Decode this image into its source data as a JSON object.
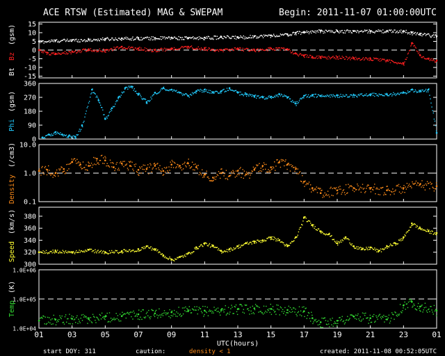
{
  "header": {
    "title": "ACE RTSW (Estimated) MAG & SWEPAM",
    "begin": "Begin: 2011-11-07 01:00:00UTC"
  },
  "footer": {
    "start_doy": "start DOY: 311",
    "caution": "caution:",
    "density_note": "density < 1",
    "created": "created: 2011-11-08 00:52:05UTC"
  },
  "colors": {
    "background": "#000000",
    "bt": "#ffffff",
    "bz": "#ff2020",
    "phi": "#22ccff",
    "density": "#ff8c1a",
    "speed": "#ffff33",
    "temp": "#33dd33",
    "axis": "#ffffff"
  },
  "chart_data": {
    "type": "scatter",
    "xlabel": "UTC(hours)",
    "x_ticks": [
      "01",
      "03",
      "05",
      "07",
      "09",
      "11",
      "13",
      "15",
      "17",
      "19",
      "21",
      "23",
      "01"
    ],
    "x_range_hours": [
      1,
      25
    ],
    "panels": [
      {
        "id": "mag",
        "ylabel_parts": [
          "Bt",
          "Bz",
          "(gsm)"
        ],
        "ylim": [
          -16,
          16
        ],
        "ticks": [
          15,
          10,
          5,
          0,
          -5,
          -10,
          -15
        ],
        "reference_line": 0,
        "series": [
          {
            "name": "Bt",
            "color": "bt",
            "x": [
              1,
              2,
              3,
              4,
              5,
              6,
              7,
              8,
              9,
              10,
              11,
              12,
              13,
              14,
              15,
              16,
              16.5,
              17,
              18,
              19,
              20,
              21,
              22,
              23,
              23.5,
              24,
              25
            ],
            "y": [
              5,
              5.5,
              5.8,
              6,
              6.5,
              6.8,
              7,
              7,
              7.2,
              7,
              7.2,
              7.5,
              7.5,
              8,
              8.5,
              9,
              10,
              10.5,
              11,
              11,
              11,
              11,
              11,
              11,
              10,
              9.5,
              8
            ]
          },
          {
            "name": "Bz",
            "color": "bz",
            "x": [
              1,
              1.5,
              2,
              3,
              4,
              5,
              6,
              7,
              8,
              9,
              10,
              11,
              12,
              13,
              14,
              15,
              16,
              16.5,
              17,
              17.5,
              18,
              19,
              20,
              21,
              22,
              23,
              23.5,
              24,
              24.5,
              25
            ],
            "y": [
              0,
              -1.5,
              -2,
              -1,
              0.5,
              0,
              2,
              1,
              0,
              1,
              2,
              1,
              0,
              1,
              0,
              1,
              0.5,
              -2,
              -3,
              -4,
              -4,
              -4,
              -4.5,
              -5,
              -6,
              -7.5,
              4,
              -3,
              -5,
              -6
            ]
          }
        ]
      },
      {
        "id": "phi",
        "ylabel_parts": [
          "Phi",
          "(gsm)"
        ],
        "ylim": [
          0,
          360
        ],
        "ticks": [
          360,
          270,
          180,
          90,
          0
        ],
        "series": [
          {
            "name": "Phi",
            "color": "phi",
            "x": [
              1.2,
              1.6,
              2,
              2.4,
              2.8,
              3.2,
              3.6,
              4.2,
              4.6,
              5,
              5.4,
              5.8,
              6.2,
              6.6,
              7,
              7.5,
              8,
              8.5,
              9,
              9.5,
              10,
              10.5,
              11,
              11.5,
              12,
              12.5,
              13,
              13.5,
              14,
              14.5,
              15,
              15.5,
              16,
              16.5,
              17,
              17.5,
              18,
              19,
              20,
              21,
              22,
              23,
              23.5,
              24,
              24.5,
              25
            ],
            "y": [
              10,
              30,
              45,
              30,
              20,
              15,
              90,
              320,
              250,
              130,
              200,
              270,
              330,
              340,
              290,
              240,
              300,
              330,
              320,
              300,
              280,
              310,
              320,
              300,
              310,
              330,
              300,
              290,
              280,
              270,
              275,
              290,
              270,
              230,
              280,
              285,
              280,
              282,
              285,
              290,
              290,
              300,
              320,
              310,
              320,
              40
            ]
          }
        ]
      },
      {
        "id": "density",
        "ylabel_parts": [
          "Density",
          "(/cm3)"
        ],
        "log": true,
        "ylim": [
          0.1,
          10.0
        ],
        "ticks": [
          10.0,
          1.0,
          0.1
        ],
        "tick_labels": [
          "10.0",
          "1.0",
          "0.1"
        ],
        "reference_line": 1.0,
        "series": [
          {
            "name": "Density",
            "color": "density",
            "x": [
              1,
              1.5,
              2,
              2.5,
              3,
              3.5,
              4,
              4.5,
              5,
              5.5,
              6,
              6.5,
              7,
              7.5,
              8,
              8.5,
              9,
              9.5,
              10,
              10.5,
              11,
              11.5,
              12,
              12.5,
              13,
              13.5,
              14,
              14.5,
              15,
              15.5,
              16,
              16.5,
              17,
              17.5,
              18,
              19,
              20,
              21,
              22,
              23,
              24,
              25
            ],
            "y": [
              1.2,
              1.3,
              1.0,
              1.4,
              2.5,
              2.0,
              1.8,
              3.2,
              2.8,
              1.6,
              2.2,
              1.8,
              1.3,
              1.4,
              1.8,
              1.2,
              2.0,
              1.8,
              2.2,
              1.6,
              0.9,
              0.7,
              1.0,
              0.8,
              1.2,
              0.9,
              1.3,
              1.8,
              1.6,
              2.4,
              2.0,
              1.4,
              0.5,
              0.3,
              0.2,
              0.25,
              0.3,
              0.3,
              0.25,
              0.3,
              0.4,
              0.35
            ]
          }
        ]
      },
      {
        "id": "speed",
        "ylabel_parts": [
          "Speed",
          "(km/s)"
        ],
        "ylim": [
          300,
          395
        ],
        "ticks": [
          380,
          360,
          340,
          320,
          300
        ],
        "series": [
          {
            "name": "Speed",
            "color": "speed",
            "x": [
              1,
              2,
              3,
              4,
              5,
              6,
              7,
              7.5,
              8,
              8.5,
              9,
              9.5,
              10,
              10.5,
              11,
              11.5,
              12,
              12.5,
              13,
              13.5,
              14,
              14.5,
              15,
              15.5,
              16,
              16.5,
              17,
              17.5,
              18,
              18.5,
              19,
              19.5,
              20,
              20.5,
              21,
              21.5,
              22,
              22.5,
              23,
              23.5,
              24,
              24.5,
              25
            ],
            "y": [
              320,
              322,
              320,
              324,
              320,
              322,
              325,
              330,
              325,
              315,
              308,
              312,
              318,
              328,
              335,
              330,
              322,
              325,
              330,
              335,
              338,
              340,
              345,
              340,
              330,
              345,
              378,
              365,
              355,
              350,
              335,
              345,
              330,
              325,
              328,
              322,
              330,
              335,
              345,
              368,
              360,
              355,
              352
            ]
          }
        ]
      },
      {
        "id": "temp",
        "ylabel_parts": [
          "Temp",
          "(K)"
        ],
        "log": true,
        "ylim": [
          10000,
          1000000
        ],
        "ticks": [
          1000000,
          100000,
          10000
        ],
        "tick_labels": [
          "1.0E+06",
          "1.0E+05",
          "1.0E+04"
        ],
        "reference_line": 100000,
        "series": [
          {
            "name": "Temp",
            "color": "temp",
            "x": [
              1,
              2,
              3,
              4,
              5,
              6,
              7,
              8,
              9,
              10,
              11,
              12,
              13,
              14,
              15,
              16,
              17,
              17.5,
              18,
              19,
              20,
              21,
              22,
              23,
              23.5,
              24,
              25
            ],
            "y": [
              18000,
              20000,
              21000,
              22000,
              25000,
              26000,
              30000,
              32000,
              35000,
              38000,
              40000,
              42000,
              45000,
              48000,
              46000,
              42000,
              38000,
              22000,
              16000,
              18000,
              25000,
              22000,
              20000,
              60000,
              80000,
              55000,
              40000
            ]
          }
        ]
      }
    ]
  }
}
